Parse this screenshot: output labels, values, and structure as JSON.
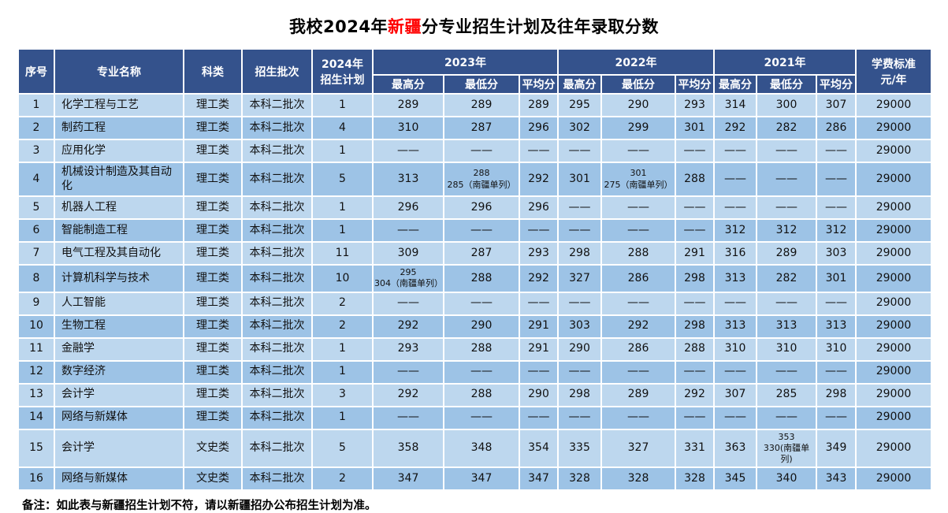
{
  "title": {
    "prefix": "我校2024年",
    "highlight": "新疆",
    "suffix": "分专业招生计划及往年录取分数"
  },
  "colors": {
    "header_bg": "#34528c",
    "row_light": "#bdd7ee",
    "row_dark": "#9dc3e6",
    "highlight_red": "#ff0000",
    "header_text": "#ffffff"
  },
  "header": {
    "seq": "序号",
    "major": "专业名称",
    "category": "科类",
    "batch": "招生批次",
    "plan_line1": "2024年",
    "plan_line2": "招生计划",
    "years": [
      "2023年",
      "2022年",
      "2021年"
    ],
    "sub": [
      "最高分",
      "最低分",
      "平均分"
    ],
    "tuition_line1": "学费标准",
    "tuition_line2": "元/年"
  },
  "table": {
    "empty_mark": "——",
    "rows": [
      {
        "seq": "1",
        "major": "化学工程与工艺",
        "category": "理工类",
        "batch": "本科二批次",
        "plan": "1",
        "scores": [
          "289",
          "289",
          "289",
          "295",
          "290",
          "293",
          "314",
          "300",
          "307"
        ],
        "tuition": "29000"
      },
      {
        "seq": "2",
        "major": "制药工程",
        "category": "理工类",
        "batch": "本科二批次",
        "plan": "4",
        "scores": [
          "310",
          "287",
          "296",
          "302",
          "299",
          "301",
          "292",
          "282",
          "286"
        ],
        "tuition": "29000"
      },
      {
        "seq": "3",
        "major": "应用化学",
        "category": "理工类",
        "batch": "本科二批次",
        "plan": "1",
        "scores": [
          "——",
          "——",
          "——",
          "——",
          "——",
          "——",
          "——",
          "——",
          "——"
        ],
        "tuition": "29000"
      },
      {
        "seq": "4",
        "major": "机械设计制造及其自动化",
        "category": "理工类",
        "batch": "本科二批次",
        "plan": "5",
        "scores": [
          "313",
          [
            "288",
            "285（南疆单列）"
          ],
          "292",
          "301",
          [
            "301",
            "275（南疆单列）"
          ],
          "288",
          "——",
          "——",
          "——"
        ],
        "tuition": "29000"
      },
      {
        "seq": "5",
        "major": "机器人工程",
        "category": "理工类",
        "batch": "本科二批次",
        "plan": "1",
        "scores": [
          "296",
          "296",
          "296",
          "——",
          "——",
          "——",
          "——",
          "——",
          "——"
        ],
        "tuition": "29000"
      },
      {
        "seq": "6",
        "major": "智能制造工程",
        "category": "理工类",
        "batch": "本科二批次",
        "plan": "1",
        "scores": [
          "——",
          "——",
          "——",
          "——",
          "——",
          "——",
          "312",
          "312",
          "312"
        ],
        "tuition": "29000"
      },
      {
        "seq": "7",
        "major": "电气工程及其自动化",
        "category": "理工类",
        "batch": "本科二批次",
        "plan": "11",
        "scores": [
          "309",
          "287",
          "293",
          "298",
          "288",
          "291",
          "316",
          "289",
          "303"
        ],
        "tuition": "29000"
      },
      {
        "seq": "8",
        "major": "计算机科学与技术",
        "category": "理工类",
        "batch": "本科二批次",
        "plan": "10",
        "scores": [
          [
            "295",
            "304（南疆单列）"
          ],
          "288",
          "292",
          "327",
          "286",
          "298",
          "313",
          "282",
          "301"
        ],
        "tuition": "29000"
      },
      {
        "seq": "9",
        "major": "人工智能",
        "category": "理工类",
        "batch": "本科二批次",
        "plan": "2",
        "scores": [
          "——",
          "——",
          "——",
          "——",
          "——",
          "——",
          "——",
          "——",
          "——"
        ],
        "tuition": "29000"
      },
      {
        "seq": "10",
        "major": "生物工程",
        "category": "理工类",
        "batch": "本科二批次",
        "plan": "2",
        "scores": [
          "292",
          "290",
          "291",
          "303",
          "292",
          "298",
          "313",
          "313",
          "313"
        ],
        "tuition": "29000"
      },
      {
        "seq": "11",
        "major": "金融学",
        "category": "理工类",
        "batch": "本科二批次",
        "plan": "1",
        "scores": [
          "293",
          "288",
          "291",
          "290",
          "286",
          "288",
          "310",
          "310",
          "310"
        ],
        "tuition": "29000"
      },
      {
        "seq": "12",
        "major": "数字经济",
        "category": "理工类",
        "batch": "本科二批次",
        "plan": "1",
        "scores": [
          "——",
          "——",
          "——",
          "——",
          "——",
          "——",
          "——",
          "——",
          "——"
        ],
        "tuition": "29000"
      },
      {
        "seq": "13",
        "major": "会计学",
        "category": "理工类",
        "batch": "本科二批次",
        "plan": "3",
        "scores": [
          "292",
          "288",
          "290",
          "298",
          "289",
          "292",
          "307",
          "285",
          "298"
        ],
        "tuition": "29000"
      },
      {
        "seq": "14",
        "major": "网络与新媒体",
        "category": "理工类",
        "batch": "本科二批次",
        "plan": "1",
        "scores": [
          "——",
          "——",
          "——",
          "——",
          "——",
          "——",
          "——",
          "——",
          "——"
        ],
        "tuition": "29000"
      },
      {
        "seq": "15",
        "major": "会计学",
        "category": "文史类",
        "batch": "本科二批次",
        "plan": "5",
        "scores": [
          "358",
          "348",
          "354",
          "335",
          "327",
          "331",
          "363",
          [
            "353",
            "330(南疆单列)"
          ],
          "349"
        ],
        "tuition": "29000"
      },
      {
        "seq": "16",
        "major": "网络与新媒体",
        "category": "文史类",
        "batch": "本科二批次",
        "plan": "2",
        "scores": [
          "347",
          "347",
          "347",
          "328",
          "328",
          "328",
          "345",
          "340",
          "343"
        ],
        "tuition": "29000"
      }
    ]
  },
  "note": "备注：如此表与新疆招生计划不符，请以新疆招办公布招生计划为准。"
}
